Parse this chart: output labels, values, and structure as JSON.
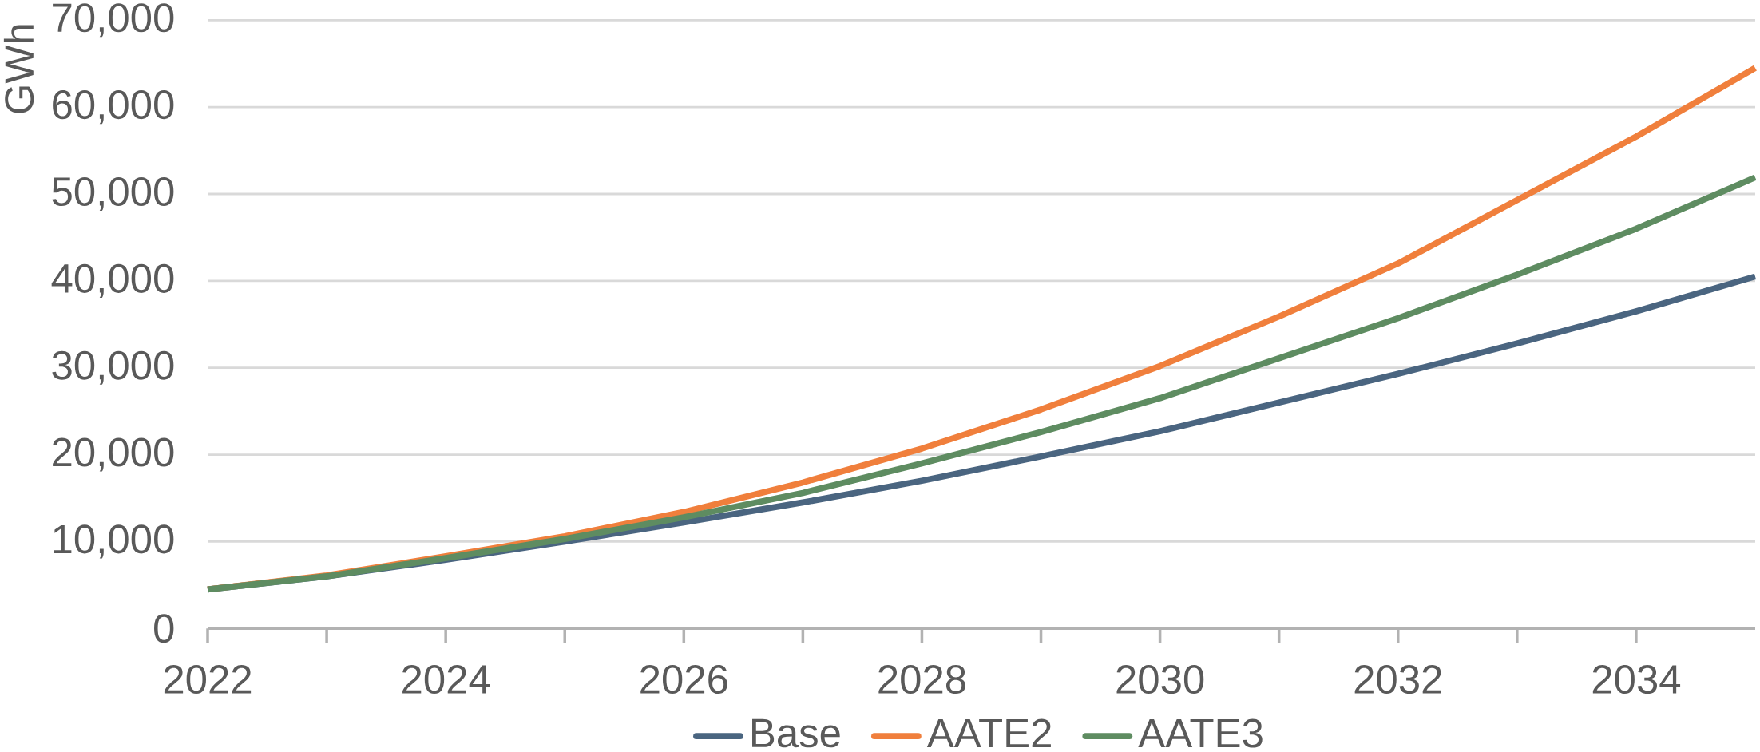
{
  "chart_data": {
    "type": "line",
    "ylabel": "GWh",
    "x": [
      2022,
      2023,
      2024,
      2025,
      2026,
      2027,
      2028,
      2029,
      2030,
      2031,
      2032,
      2033,
      2034,
      2035
    ],
    "series": [
      {
        "name": "Base",
        "color": "#4a6580",
        "values": [
          4500,
          6000,
          7900,
          10000,
          12200,
          14500,
          17000,
          19800,
          22700,
          26000,
          29300,
          32800,
          36500,
          40500
        ]
      },
      {
        "name": "AATE2",
        "color": "#f07f3c",
        "values": [
          4500,
          6100,
          8300,
          10600,
          13400,
          16800,
          20700,
          25200,
          30200,
          35900,
          42000,
          49300,
          56600,
          64500
        ]
      },
      {
        "name": "AATE3",
        "color": "#5e8c61",
        "values": [
          4500,
          6000,
          8100,
          10300,
          12800,
          15600,
          19000,
          22600,
          26500,
          31100,
          35700,
          40700,
          46000,
          51900
        ]
      }
    ],
    "xlim": [
      2022,
      2035
    ],
    "xticks": [
      2022,
      2024,
      2026,
      2028,
      2030,
      2032,
      2034
    ],
    "ylim": [
      0,
      70000
    ],
    "yticks": [
      0,
      {
        "value": 10000,
        "label": "10,000"
      },
      {
        "value": 20000,
        "label": "20,000"
      },
      {
        "value": 30000,
        "label": "30,000"
      },
      {
        "value": 40000,
        "label": "40,000"
      },
      {
        "value": 50000,
        "label": "50,000"
      },
      {
        "value": 60000,
        "label": "60,000"
      },
      {
        "value": 70000,
        "label": "70,000"
      }
    ],
    "grid": "y",
    "legend": "bottom",
    "marker": "none",
    "line_style": "solid"
  }
}
